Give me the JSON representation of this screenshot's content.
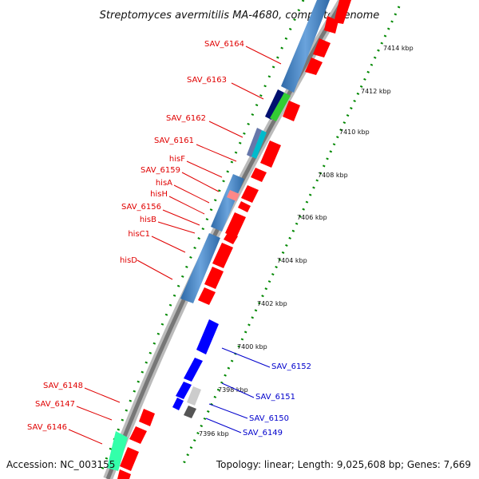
{
  "title": "Streptomyces avermitilis MA-4680, complete genome",
  "accession": "Accession: NC_003155",
  "topology": "Topology: linear; Length: 9,025,608 bp; Genes: 7,669",
  "ticks": [
    {
      "label": "7414 kbp",
      "kbp": 7414
    },
    {
      "label": "7412 kbp",
      "kbp": 7412
    },
    {
      "label": "7410 kbp",
      "kbp": 7410
    },
    {
      "label": "7408 kbp",
      "kbp": 7408
    },
    {
      "label": "7406 kbp",
      "kbp": 7406
    },
    {
      "label": "7404 kbp",
      "kbp": 7404
    },
    {
      "label": "7402 kbp",
      "kbp": 7402
    },
    {
      "label": "7400 kbp",
      "kbp": 7400
    },
    {
      "label": "7398 kbp",
      "kbp": 7398
    },
    {
      "label": "7396 kbp",
      "kbp": 7396
    }
  ],
  "left_labels": [
    {
      "text": "SAV_6164"
    },
    {
      "text": "SAV_6163"
    },
    {
      "text": "SAV_6162"
    },
    {
      "text": "SAV_6161"
    },
    {
      "text": "hisF"
    },
    {
      "text": "SAV_6159"
    },
    {
      "text": "hisA"
    },
    {
      "text": "hisH"
    },
    {
      "text": "SAV_6156"
    },
    {
      "text": "hisB"
    },
    {
      "text": "hisC1"
    },
    {
      "text": "hisD"
    },
    {
      "text": "SAV_6148"
    },
    {
      "text": "SAV_6147"
    },
    {
      "text": "SAV_6146"
    }
  ],
  "right_labels": [
    {
      "text": "SAV_6152"
    },
    {
      "text": "SAV_6151"
    },
    {
      "text": "SAV_6150"
    },
    {
      "text": "SAV_6149"
    }
  ],
  "colors": {
    "label_left": "#e00000",
    "label_right": "#0000cc",
    "gene_red": "#ff0000",
    "gene_blue": "#0000ff",
    "cog_steel": "#4a86c5",
    "tick_green": "#008800"
  }
}
